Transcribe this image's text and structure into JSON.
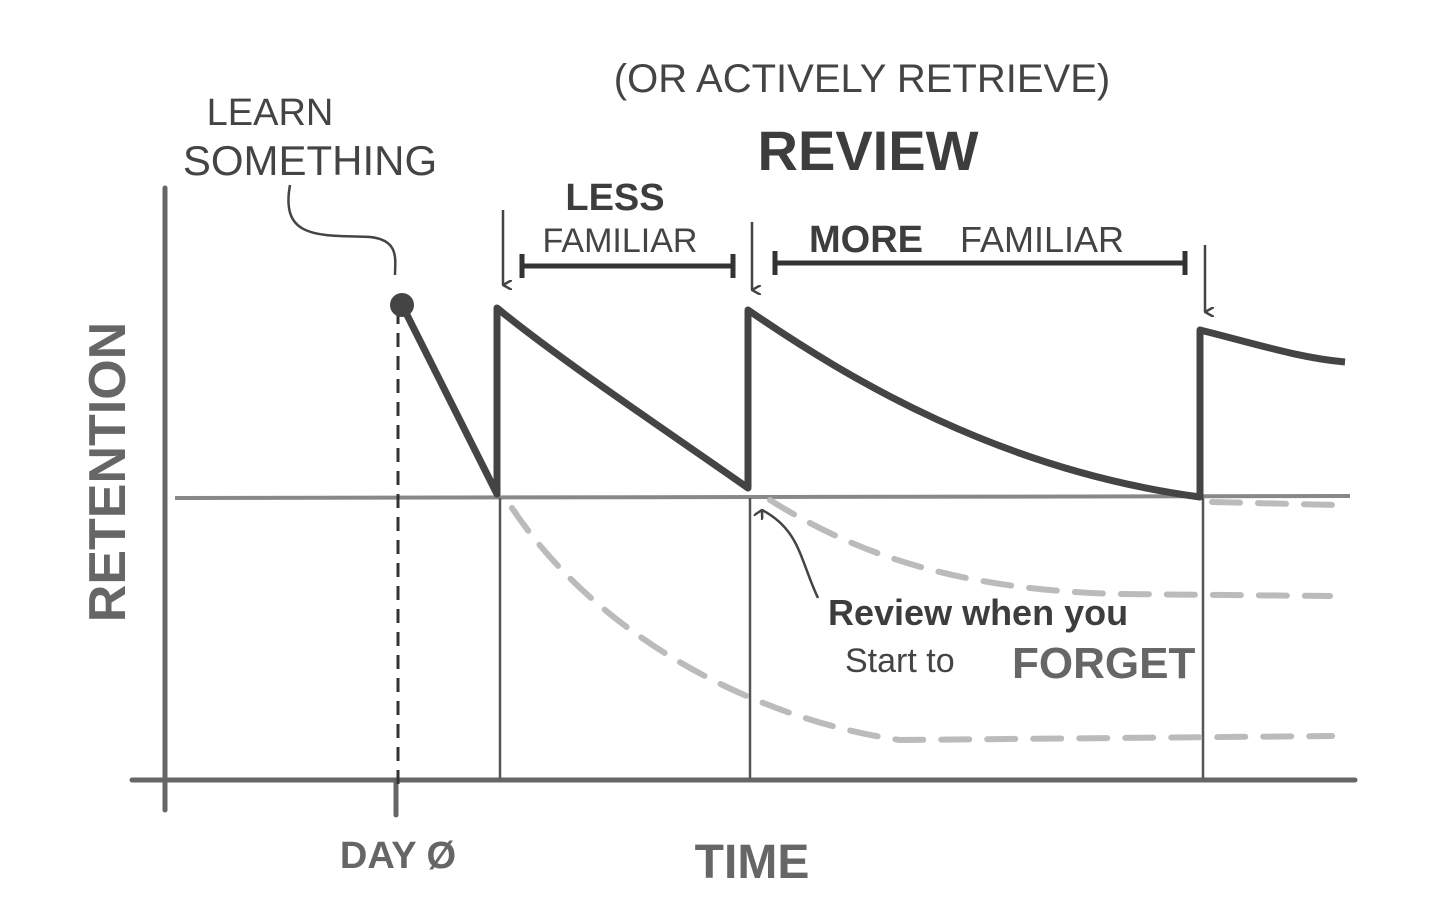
{
  "annotations": {
    "note": "(OR ACTIVELY RETRIEVE)",
    "review": "REVIEW",
    "learn": [
      "LEARN",
      "SOMETHING"
    ],
    "less": [
      "LESS",
      "FAMILIAR"
    ],
    "more": [
      "MORE",
      "FAMILIAR"
    ],
    "forget": [
      "Review when you",
      "Start to",
      "FORGET"
    ]
  },
  "axes": {
    "y": "RETENTION",
    "x": "TIME",
    "day": "DAY Ø"
  }
}
